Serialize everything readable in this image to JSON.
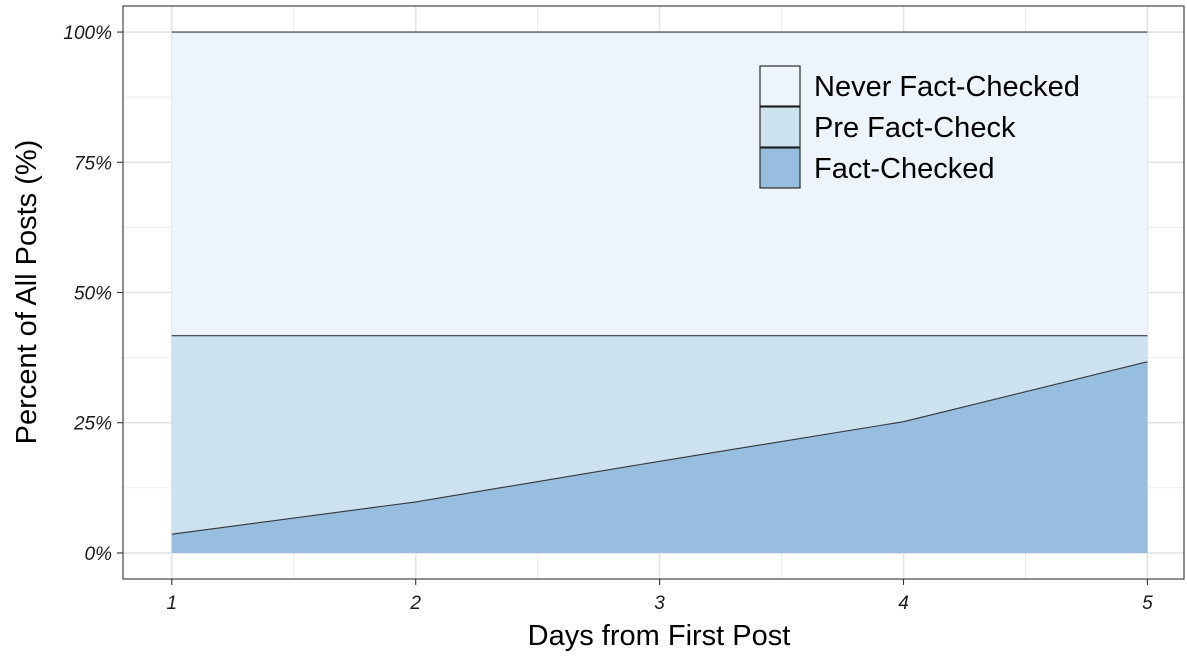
{
  "chart_data": {
    "type": "area",
    "stacked": true,
    "xlabel": "Days from First Post",
    "ylabel": "Percent of All Posts (%)",
    "x": [
      1,
      2,
      3,
      4,
      5
    ],
    "xlim": [
      0.8,
      5.15
    ],
    "ylim": [
      -0.05,
      1.05
    ],
    "x_ticks": [
      1,
      2,
      3,
      4,
      5
    ],
    "x_tick_labels": [
      "1",
      "2",
      "3",
      "4",
      "5"
    ],
    "y_ticks": [
      0,
      0.25,
      0.5,
      0.75,
      1.0
    ],
    "y_tick_labels": [
      "0%",
      "25%",
      "50%",
      "75%",
      "100%"
    ],
    "grid": true,
    "legend_position": "top-right",
    "series": [
      {
        "name": "Fact-Checked",
        "color": "#97bddf",
        "values": [
          0.036,
          0.098,
          0.176,
          0.252,
          0.367
        ]
      },
      {
        "name": "Pre Fact-Check",
        "color": "#cce2ef",
        "values": [
          0.381,
          0.319,
          0.241,
          0.165,
          0.05
        ]
      },
      {
        "name": "Never Fact-Checked",
        "color": "#edf4fb",
        "values": [
          0.583,
          0.583,
          0.583,
          0.583,
          0.583
        ]
      }
    ],
    "legend_order": [
      "Never Fact-Checked",
      "Pre Fact-Check",
      "Fact-Checked"
    ]
  }
}
